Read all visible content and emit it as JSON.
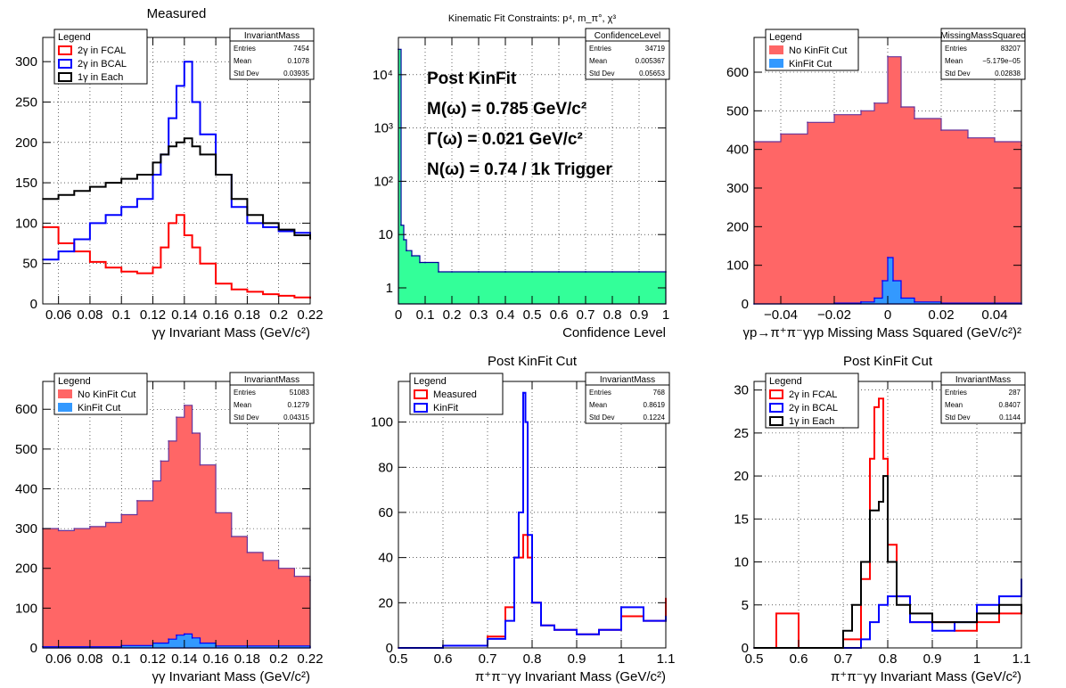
{
  "colors": {
    "red": "#ff0000",
    "blue": "#0000ff",
    "black": "#000000",
    "navy": "#000099",
    "fill_red": "#ff6666",
    "fill_blue": "#3399ff",
    "fill_green": "#33ff99",
    "outline_purple": "#663399"
  },
  "chart_data": [
    {
      "id": "p1",
      "type": "line",
      "title": "Measured",
      "xlabel": "γγ Invariant Mass (GeV/c²)",
      "ylabel": "",
      "xlim": [
        0.05,
        0.22
      ],
      "ylim": [
        0,
        330
      ],
      "x_ticks": [
        0.06,
        0.08,
        0.1,
        0.12,
        0.14,
        0.16,
        0.18,
        0.2,
        0.22
      ],
      "x_tick_labels": [
        "0.06",
        "0.08",
        "0.1",
        "0.12",
        "0.14",
        "0.16",
        "0.18",
        "0.2",
        "0.22"
      ],
      "y_ticks": [
        0,
        50,
        100,
        150,
        200,
        250,
        300
      ],
      "y_tick_labels": [
        "0",
        "50",
        "100",
        "150",
        "200",
        "250",
        "300"
      ],
      "grid": true,
      "legend_position": "top-left",
      "legend": {
        "title": "Legend",
        "entries": [
          {
            "label": "2γ in FCAL",
            "color": "#ff0000",
            "style": "box"
          },
          {
            "label": "2γ in BCAL",
            "color": "#0000ff",
            "style": "box"
          },
          {
            "label": "1γ in Each",
            "color": "#000000",
            "style": "box"
          }
        ]
      },
      "stats": {
        "title": "InvariantMass",
        "rows": [
          [
            "Entries",
            "7454"
          ],
          [
            "Mean",
            "0.1078"
          ],
          [
            "Std Dev",
            "0.03935"
          ]
        ]
      },
      "series": [
        {
          "name": "2γ in FCAL",
          "color": "#ff0000",
          "x": [
            0.05,
            0.06,
            0.07,
            0.08,
            0.09,
            0.1,
            0.11,
            0.12,
            0.125,
            0.13,
            0.135,
            0.14,
            0.145,
            0.15,
            0.16,
            0.17,
            0.18,
            0.19,
            0.2,
            0.21,
            0.22
          ],
          "y": [
            95,
            75,
            65,
            52,
            45,
            40,
            38,
            45,
            70,
            100,
            110,
            85,
            70,
            50,
            25,
            18,
            15,
            12,
            10,
            8,
            7
          ]
        },
        {
          "name": "2γ in BCAL",
          "color": "#0000ff",
          "x": [
            0.05,
            0.06,
            0.07,
            0.08,
            0.09,
            0.1,
            0.11,
            0.12,
            0.125,
            0.13,
            0.135,
            0.14,
            0.145,
            0.15,
            0.16,
            0.17,
            0.18,
            0.19,
            0.2,
            0.21,
            0.22
          ],
          "y": [
            55,
            65,
            80,
            100,
            110,
            120,
            130,
            160,
            185,
            230,
            270,
            300,
            250,
            210,
            160,
            120,
            100,
            95,
            90,
            88,
            85
          ]
        },
        {
          "name": "1γ in Each",
          "color": "#000000",
          "x": [
            0.05,
            0.06,
            0.07,
            0.08,
            0.09,
            0.1,
            0.11,
            0.12,
            0.125,
            0.13,
            0.135,
            0.14,
            0.145,
            0.15,
            0.16,
            0.17,
            0.18,
            0.19,
            0.2,
            0.21,
            0.22
          ],
          "y": [
            130,
            135,
            140,
            145,
            150,
            155,
            160,
            175,
            185,
            195,
            200,
            205,
            195,
            185,
            160,
            130,
            110,
            100,
            92,
            85,
            80
          ]
        }
      ]
    },
    {
      "id": "p2",
      "type": "bar",
      "title": "Kinematic Fit Constraints: p⁴, m_π°, χ³",
      "xlabel": "Confidence Level",
      "ylabel": "",
      "log_y": true,
      "xlim": [
        0,
        1
      ],
      "ylim": [
        0.5,
        50000
      ],
      "x_ticks": [
        0,
        0.1,
        0.2,
        0.3,
        0.4,
        0.5,
        0.6,
        0.7,
        0.8,
        0.9,
        1
      ],
      "x_tick_labels": [
        "0",
        "0.1",
        "0.2",
        "0.3",
        "0.4",
        "0.5",
        "0.6",
        "0.7",
        "0.8",
        "0.9",
        "1"
      ],
      "y_ticks": [
        1,
        10,
        100,
        1000,
        10000
      ],
      "y_tick_labels": [
        "1",
        "10",
        "10²",
        "10³",
        "10⁴"
      ],
      "grid": true,
      "stats": {
        "title": "ConfidenceLevel",
        "rows": [
          [
            "Entries",
            "34719"
          ],
          [
            "Mean",
            "0.005367"
          ],
          [
            "Std Dev",
            "0.05653"
          ]
        ]
      },
      "annotations": [
        "Post KinFit",
        "M(ω) = 0.785 GeV/c²",
        "Γ(ω) = 0.021 GeV/c²",
        "N(ω) = 0.74 / 1k Trigger"
      ],
      "series": [
        {
          "name": "",
          "color": "#000099",
          "fill": "#33ff99",
          "x": [
            0.0,
            0.01,
            0.02,
            0.03,
            0.05,
            0.08,
            0.1,
            0.15,
            0.2,
            0.3,
            0.4,
            0.5,
            0.6,
            0.7,
            0.8,
            0.9,
            1.0
          ],
          "y": [
            30000,
            15,
            8,
            5,
            4,
            3,
            3,
            2,
            2,
            2,
            2,
            2,
            2,
            2,
            2,
            2,
            2
          ]
        }
      ]
    },
    {
      "id": "p3",
      "type": "area",
      "title": "",
      "xlabel": "γp→π⁺π⁻γγp Missing Mass Squared (GeV/c²)²",
      "ylabel": "",
      "xlim": [
        -0.05,
        0.05
      ],
      "ylim": [
        0,
        690
      ],
      "x_ticks": [
        -0.04,
        -0.02,
        0,
        0.02,
        0.04
      ],
      "x_tick_labels": [
        "−0.04",
        "−0.02",
        "0",
        "0.02",
        "0.04"
      ],
      "y_ticks": [
        0,
        100,
        200,
        300,
        400,
        500,
        600
      ],
      "y_tick_labels": [
        "0",
        "100",
        "200",
        "300",
        "400",
        "500",
        "600"
      ],
      "grid": true,
      "legend_position": "top-left",
      "legend": {
        "title": "Legend",
        "entries": [
          {
            "label": "No KinFit Cut",
            "color": "#ff6666",
            "style": "fill"
          },
          {
            "label": "KinFit Cut",
            "color": "#3399ff",
            "style": "fill"
          }
        ]
      },
      "stats": {
        "title": "MissingMassSquared",
        "rows": [
          [
            "Entries",
            "83207"
          ],
          [
            "Mean",
            "−5.179e−05"
          ],
          [
            "Std Dev",
            "0.02838"
          ]
        ]
      },
      "series": [
        {
          "name": "No KinFit Cut",
          "color": "#663399",
          "fill": "#ff6666",
          "x": [
            -0.05,
            -0.04,
            -0.03,
            -0.02,
            -0.01,
            -0.005,
            0,
            0.005,
            0.01,
            0.02,
            0.03,
            0.04,
            0.05
          ],
          "y": [
            420,
            440,
            470,
            490,
            500,
            520,
            640,
            510,
            480,
            450,
            430,
            420,
            410
          ]
        },
        {
          "name": "KinFit Cut",
          "color": "#0000ff",
          "fill": "#3399ff",
          "x": [
            -0.05,
            -0.02,
            -0.01,
            -0.005,
            -0.002,
            0,
            0.002,
            0.005,
            0.01,
            0.02,
            0.05
          ],
          "y": [
            0,
            2,
            5,
            15,
            60,
            120,
            60,
            15,
            5,
            2,
            0
          ]
        }
      ]
    },
    {
      "id": "p4",
      "type": "area",
      "title": "",
      "xlabel": "γγ Invariant Mass (GeV/c²)",
      "ylabel": "",
      "xlim": [
        0.05,
        0.22
      ],
      "ylim": [
        0,
        670
      ],
      "x_ticks": [
        0.06,
        0.08,
        0.1,
        0.12,
        0.14,
        0.16,
        0.18,
        0.2,
        0.22
      ],
      "x_tick_labels": [
        "0.06",
        "0.08",
        "0.1",
        "0.12",
        "0.14",
        "0.16",
        "0.18",
        "0.2",
        "0.22"
      ],
      "y_ticks": [
        0,
        100,
        200,
        300,
        400,
        500,
        600
      ],
      "y_tick_labels": [
        "0",
        "100",
        "200",
        "300",
        "400",
        "500",
        "600"
      ],
      "grid": true,
      "legend_position": "top-left",
      "legend": {
        "title": "Legend",
        "entries": [
          {
            "label": "No KinFit Cut",
            "color": "#ff6666",
            "style": "fill"
          },
          {
            "label": "KinFit Cut",
            "color": "#3399ff",
            "style": "fill"
          }
        ]
      },
      "stats": {
        "title": "InvariantMass",
        "rows": [
          [
            "Entries",
            "51083"
          ],
          [
            "Mean",
            "0.1279"
          ],
          [
            "Std Dev",
            "0.04315"
          ]
        ]
      },
      "series": [
        {
          "name": "No KinFit Cut",
          "color": "#663399",
          "fill": "#ff6666",
          "x": [
            0.05,
            0.06,
            0.07,
            0.08,
            0.09,
            0.1,
            0.11,
            0.12,
            0.125,
            0.13,
            0.135,
            0.14,
            0.145,
            0.15,
            0.16,
            0.17,
            0.18,
            0.19,
            0.2,
            0.21,
            0.22
          ],
          "y": [
            300,
            295,
            300,
            305,
            315,
            335,
            370,
            420,
            470,
            520,
            580,
            610,
            540,
            460,
            340,
            280,
            240,
            220,
            200,
            180,
            170
          ]
        },
        {
          "name": "KinFit Cut",
          "color": "#0000ff",
          "fill": "#3399ff",
          "x": [
            0.05,
            0.1,
            0.12,
            0.13,
            0.135,
            0.14,
            0.145,
            0.15,
            0.16,
            0.22
          ],
          "y": [
            3,
            6,
            12,
            22,
            32,
            35,
            25,
            12,
            5,
            2
          ]
        }
      ]
    },
    {
      "id": "p5",
      "type": "line",
      "title": "Post KinFit Cut",
      "xlabel": "π⁺π⁻γγ Invariant Mass (GeV/c²)",
      "ylabel": "",
      "xlim": [
        0.5,
        1.1
      ],
      "ylim": [
        0,
        118
      ],
      "x_ticks": [
        0.5,
        0.6,
        0.7,
        0.8,
        0.9,
        1,
        1.1
      ],
      "x_tick_labels": [
        "0.5",
        "0.6",
        "0.7",
        "0.8",
        "0.9",
        "1",
        "1.1"
      ],
      "y_ticks": [
        0,
        20,
        40,
        60,
        80,
        100
      ],
      "y_tick_labels": [
        "0",
        "20",
        "40",
        "60",
        "80",
        "100"
      ],
      "grid": true,
      "legend_position": "top-left",
      "legend": {
        "title": "Legend",
        "entries": [
          {
            "label": "Measured",
            "color": "#ff0000",
            "style": "box"
          },
          {
            "label": "KinFit",
            "color": "#0000ff",
            "style": "box"
          }
        ]
      },
      "stats": {
        "title": "InvariantMass",
        "rows": [
          [
            "Entries",
            "768"
          ],
          [
            "Mean",
            "0.8619"
          ],
          [
            "Std Dev",
            "0.1224"
          ]
        ]
      },
      "series": [
        {
          "name": "Measured",
          "color": "#ff0000",
          "x": [
            0.5,
            0.6,
            0.7,
            0.74,
            0.76,
            0.78,
            0.79,
            0.8,
            0.82,
            0.85,
            0.9,
            0.95,
            1.0,
            1.05,
            1.1
          ],
          "y": [
            0,
            1,
            5,
            18,
            40,
            50,
            40,
            20,
            10,
            8,
            6,
            8,
            14,
            12,
            22
          ]
        },
        {
          "name": "KinFit",
          "color": "#0000ff",
          "x": [
            0.5,
            0.6,
            0.7,
            0.74,
            0.76,
            0.77,
            0.78,
            0.785,
            0.79,
            0.8,
            0.82,
            0.85,
            0.9,
            0.95,
            1.0,
            1.05,
            1.1
          ],
          "y": [
            0,
            1,
            4,
            12,
            40,
            60,
            113,
            100,
            50,
            20,
            10,
            8,
            6,
            8,
            18,
            12,
            14
          ]
        }
      ]
    },
    {
      "id": "p6",
      "type": "line",
      "title": "Post KinFit Cut",
      "xlabel": "π⁺π⁻γγ Invariant Mass (GeV/c²)",
      "ylabel": "",
      "xlim": [
        0.5,
        1.1
      ],
      "ylim": [
        0,
        31
      ],
      "x_ticks": [
        0.5,
        0.6,
        0.7,
        0.8,
        0.9,
        1,
        1.1
      ],
      "x_tick_labels": [
        "0.5",
        "0.6",
        "0.7",
        "0.8",
        "0.9",
        "1",
        "1.1"
      ],
      "y_ticks": [
        0,
        5,
        10,
        15,
        20,
        25,
        30
      ],
      "y_tick_labels": [
        "0",
        "5",
        "10",
        "15",
        "20",
        "25",
        "30"
      ],
      "grid": true,
      "legend_position": "top-left",
      "legend": {
        "title": "Legend",
        "entries": [
          {
            "label": "2γ in FCAL",
            "color": "#ff0000",
            "style": "box"
          },
          {
            "label": "2γ in BCAL",
            "color": "#0000ff",
            "style": "box"
          },
          {
            "label": "1γ in Each",
            "color": "#000000",
            "style": "box"
          }
        ]
      },
      "stats": {
        "title": "InvariantMass",
        "rows": [
          [
            "Entries",
            "287"
          ],
          [
            "Mean",
            "0.8407"
          ],
          [
            "Std Dev",
            "0.1144"
          ]
        ]
      },
      "series": [
        {
          "name": "2γ in FCAL",
          "color": "#ff0000",
          "x": [
            0.5,
            0.55,
            0.6,
            0.7,
            0.74,
            0.76,
            0.77,
            0.78,
            0.79,
            0.8,
            0.82,
            0.85,
            0.9,
            0.95,
            1.0,
            1.05,
            1.1
          ],
          "y": [
            0,
            4,
            0,
            1,
            8,
            22,
            28,
            29,
            22,
            12,
            6,
            3,
            3,
            2,
            3,
            4,
            5
          ]
        },
        {
          "name": "2γ in BCAL",
          "color": "#0000ff",
          "x": [
            0.5,
            0.7,
            0.74,
            0.76,
            0.78,
            0.8,
            0.85,
            0.9,
            0.95,
            1.0,
            1.05,
            1.1
          ],
          "y": [
            0,
            0,
            1,
            3,
            5,
            6,
            3,
            2,
            3,
            5,
            6,
            8
          ]
        },
        {
          "name": "1γ in Each",
          "color": "#000000",
          "x": [
            0.5,
            0.65,
            0.7,
            0.72,
            0.74,
            0.76,
            0.78,
            0.79,
            0.8,
            0.82,
            0.85,
            0.9,
            0.95,
            1.0,
            1.05,
            1.1
          ],
          "y": [
            0,
            0,
            2,
            5,
            10,
            16,
            17,
            20,
            10,
            5,
            4,
            3,
            3,
            4,
            5,
            4
          ]
        }
      ]
    }
  ]
}
